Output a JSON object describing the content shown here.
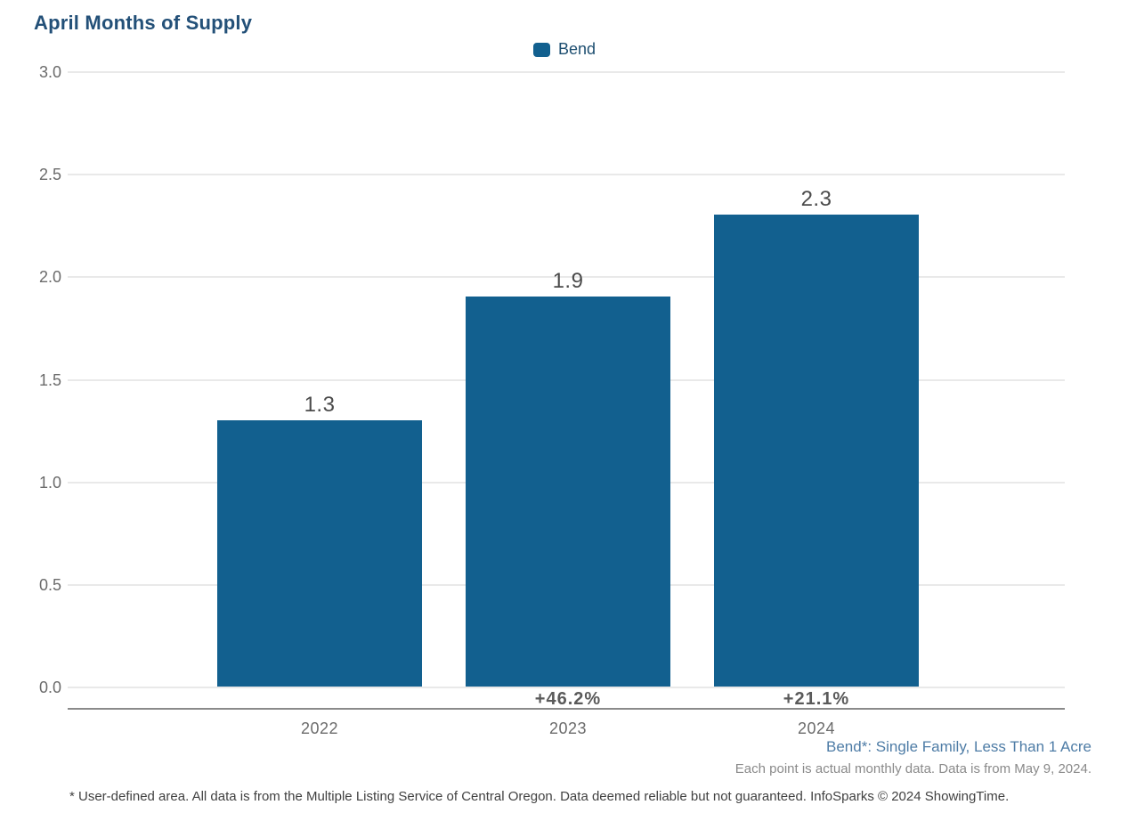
{
  "header": {
    "title": "April Months of Supply"
  },
  "legend": {
    "items": [
      {
        "label": "Bend",
        "color": "#12608F"
      }
    ]
  },
  "chart_data": {
    "type": "bar",
    "title": "April Months of Supply",
    "categories": [
      "2022",
      "2023",
      "2024"
    ],
    "series": [
      {
        "name": "Bend",
        "values": [
          1.3,
          1.9,
          2.3
        ]
      }
    ],
    "value_labels": [
      "1.3",
      "1.9",
      "2.3"
    ],
    "pct_change_labels": [
      "",
      "+46.2%",
      "+21.1%"
    ],
    "xlabel": "",
    "ylabel": "",
    "ylim": [
      0,
      3.0
    ],
    "yticks": [
      0,
      0.5,
      1.0,
      1.5,
      2.0,
      2.5,
      3.0
    ],
    "ytick_labels": [
      "0.0",
      "0.5",
      "1.0",
      "1.5",
      "2.0",
      "2.5",
      "3.0"
    ],
    "grid": "horizontal",
    "legend_position": "top-center",
    "bar_color": "#12608F"
  },
  "annotations": {
    "series_definition": "Bend*: Single Family, Less Than 1 Acre",
    "data_note": "Each point is actual monthly data. Data is from May 9, 2024.",
    "footnote": "* User-defined area. All data is from the Multiple Listing Service of Central Oregon. Data deemed reliable but not guaranteed. InfoSparks © 2024 ShowingTime."
  },
  "colors": {
    "bar": "#12608F",
    "title": "#235078",
    "legend_text": "#1D4E70",
    "tick_text": "#6b6b6b",
    "value_label": "#4b4b4b",
    "pct_label": "#5a5a5a",
    "annotation_blue": "#4E7CA6",
    "note_gray": "#8a8a8a",
    "footnote_gray": "#414141",
    "gridline": "#e9e9e9",
    "axis_line": "#8a8a8a"
  }
}
